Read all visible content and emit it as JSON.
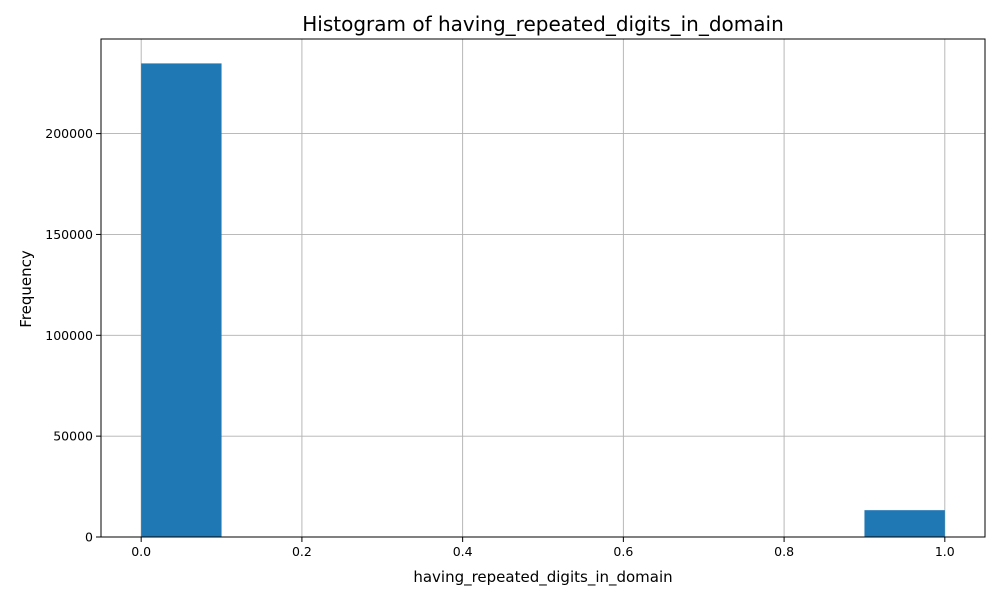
{
  "chart_data": {
    "type": "bar",
    "title": "Histogram of having_repeated_digits_in_domain",
    "xlabel": "having_repeated_digits_in_domain",
    "ylabel": "Frequency",
    "xlim": [
      -0.05,
      1.05
    ],
    "ylim": [
      0,
      246900
    ],
    "bin_width": 0.1,
    "bins": [
      {
        "x_start": 0.0,
        "x_end": 0.1,
        "count": 234800
      },
      {
        "x_start": 0.1,
        "x_end": 0.2,
        "count": 0
      },
      {
        "x_start": 0.2,
        "x_end": 0.3,
        "count": 0
      },
      {
        "x_start": 0.3,
        "x_end": 0.4,
        "count": 0
      },
      {
        "x_start": 0.4,
        "x_end": 0.5,
        "count": 0
      },
      {
        "x_start": 0.5,
        "x_end": 0.6,
        "count": 0
      },
      {
        "x_start": 0.6,
        "x_end": 0.7,
        "count": 0
      },
      {
        "x_start": 0.7,
        "x_end": 0.8,
        "count": 0
      },
      {
        "x_start": 0.8,
        "x_end": 0.9,
        "count": 0
      },
      {
        "x_start": 0.9,
        "x_end": 1.0,
        "count": 13300
      }
    ],
    "x_ticks": [
      0.0,
      0.2,
      0.4,
      0.6,
      0.8,
      1.0
    ],
    "x_tick_labels": [
      "0.0",
      "0.2",
      "0.4",
      "0.6",
      "0.8",
      "1.0"
    ],
    "y_ticks": [
      0,
      50000,
      100000,
      150000,
      200000
    ],
    "y_tick_labels": [
      "0",
      "50000",
      "100000",
      "150000",
      "200000"
    ],
    "grid": true,
    "bar_color": "#1f77b4",
    "grid_color": "#b0b0b0"
  }
}
